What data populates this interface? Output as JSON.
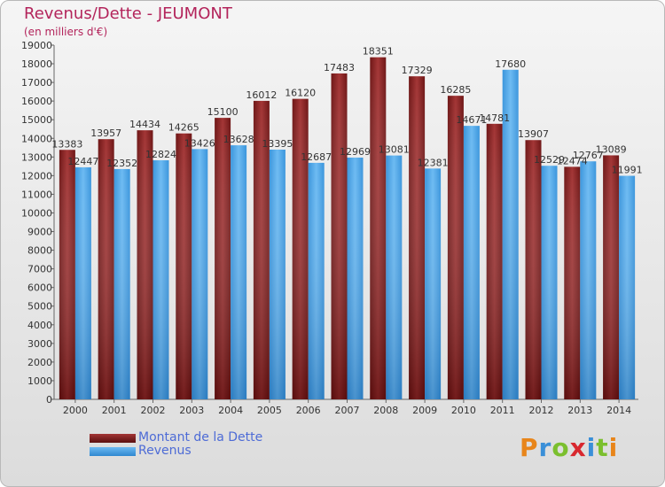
{
  "chart_data": {
    "type": "bar",
    "title": "Revenus/Dette - JEUMONT",
    "subtitle": "(en milliers d'€)",
    "categories": [
      "2000",
      "2001",
      "2002",
      "2003",
      "2004",
      "2005",
      "2006",
      "2007",
      "2008",
      "2009",
      "2010",
      "2011",
      "2012",
      "2013",
      "2014"
    ],
    "series": [
      {
        "name": "Montant de la Dette",
        "color": "#8b2525",
        "values": [
          13383,
          13957,
          14434,
          14265,
          15100,
          16012,
          16120,
          17483,
          18351,
          17329,
          16285,
          14781,
          13907,
          12474,
          13089
        ]
      },
      {
        "name": "Revenus",
        "color": "#4aa3e6",
        "values": [
          12447,
          12352,
          12824,
          13426,
          13628,
          13395,
          12687,
          12969,
          13081,
          12381,
          14671,
          17680,
          12529,
          12767,
          11991
        ]
      }
    ],
    "ylim": [
      0,
      19000
    ],
    "ytick_step": 1000,
    "grid": false,
    "legend_position": "bottom-left"
  },
  "logo": {
    "letters": [
      {
        "ch": "P",
        "color": "#e8851a"
      },
      {
        "ch": "r",
        "color": "#3a8fd8"
      },
      {
        "ch": "o",
        "color": "#7bbf2e"
      },
      {
        "ch": "x",
        "color": "#d8282f"
      },
      {
        "ch": "i",
        "color": "#3a8fd8"
      },
      {
        "ch": "t",
        "color": "#7bbf2e"
      },
      {
        "ch": "i",
        "color": "#e8851a"
      }
    ]
  }
}
